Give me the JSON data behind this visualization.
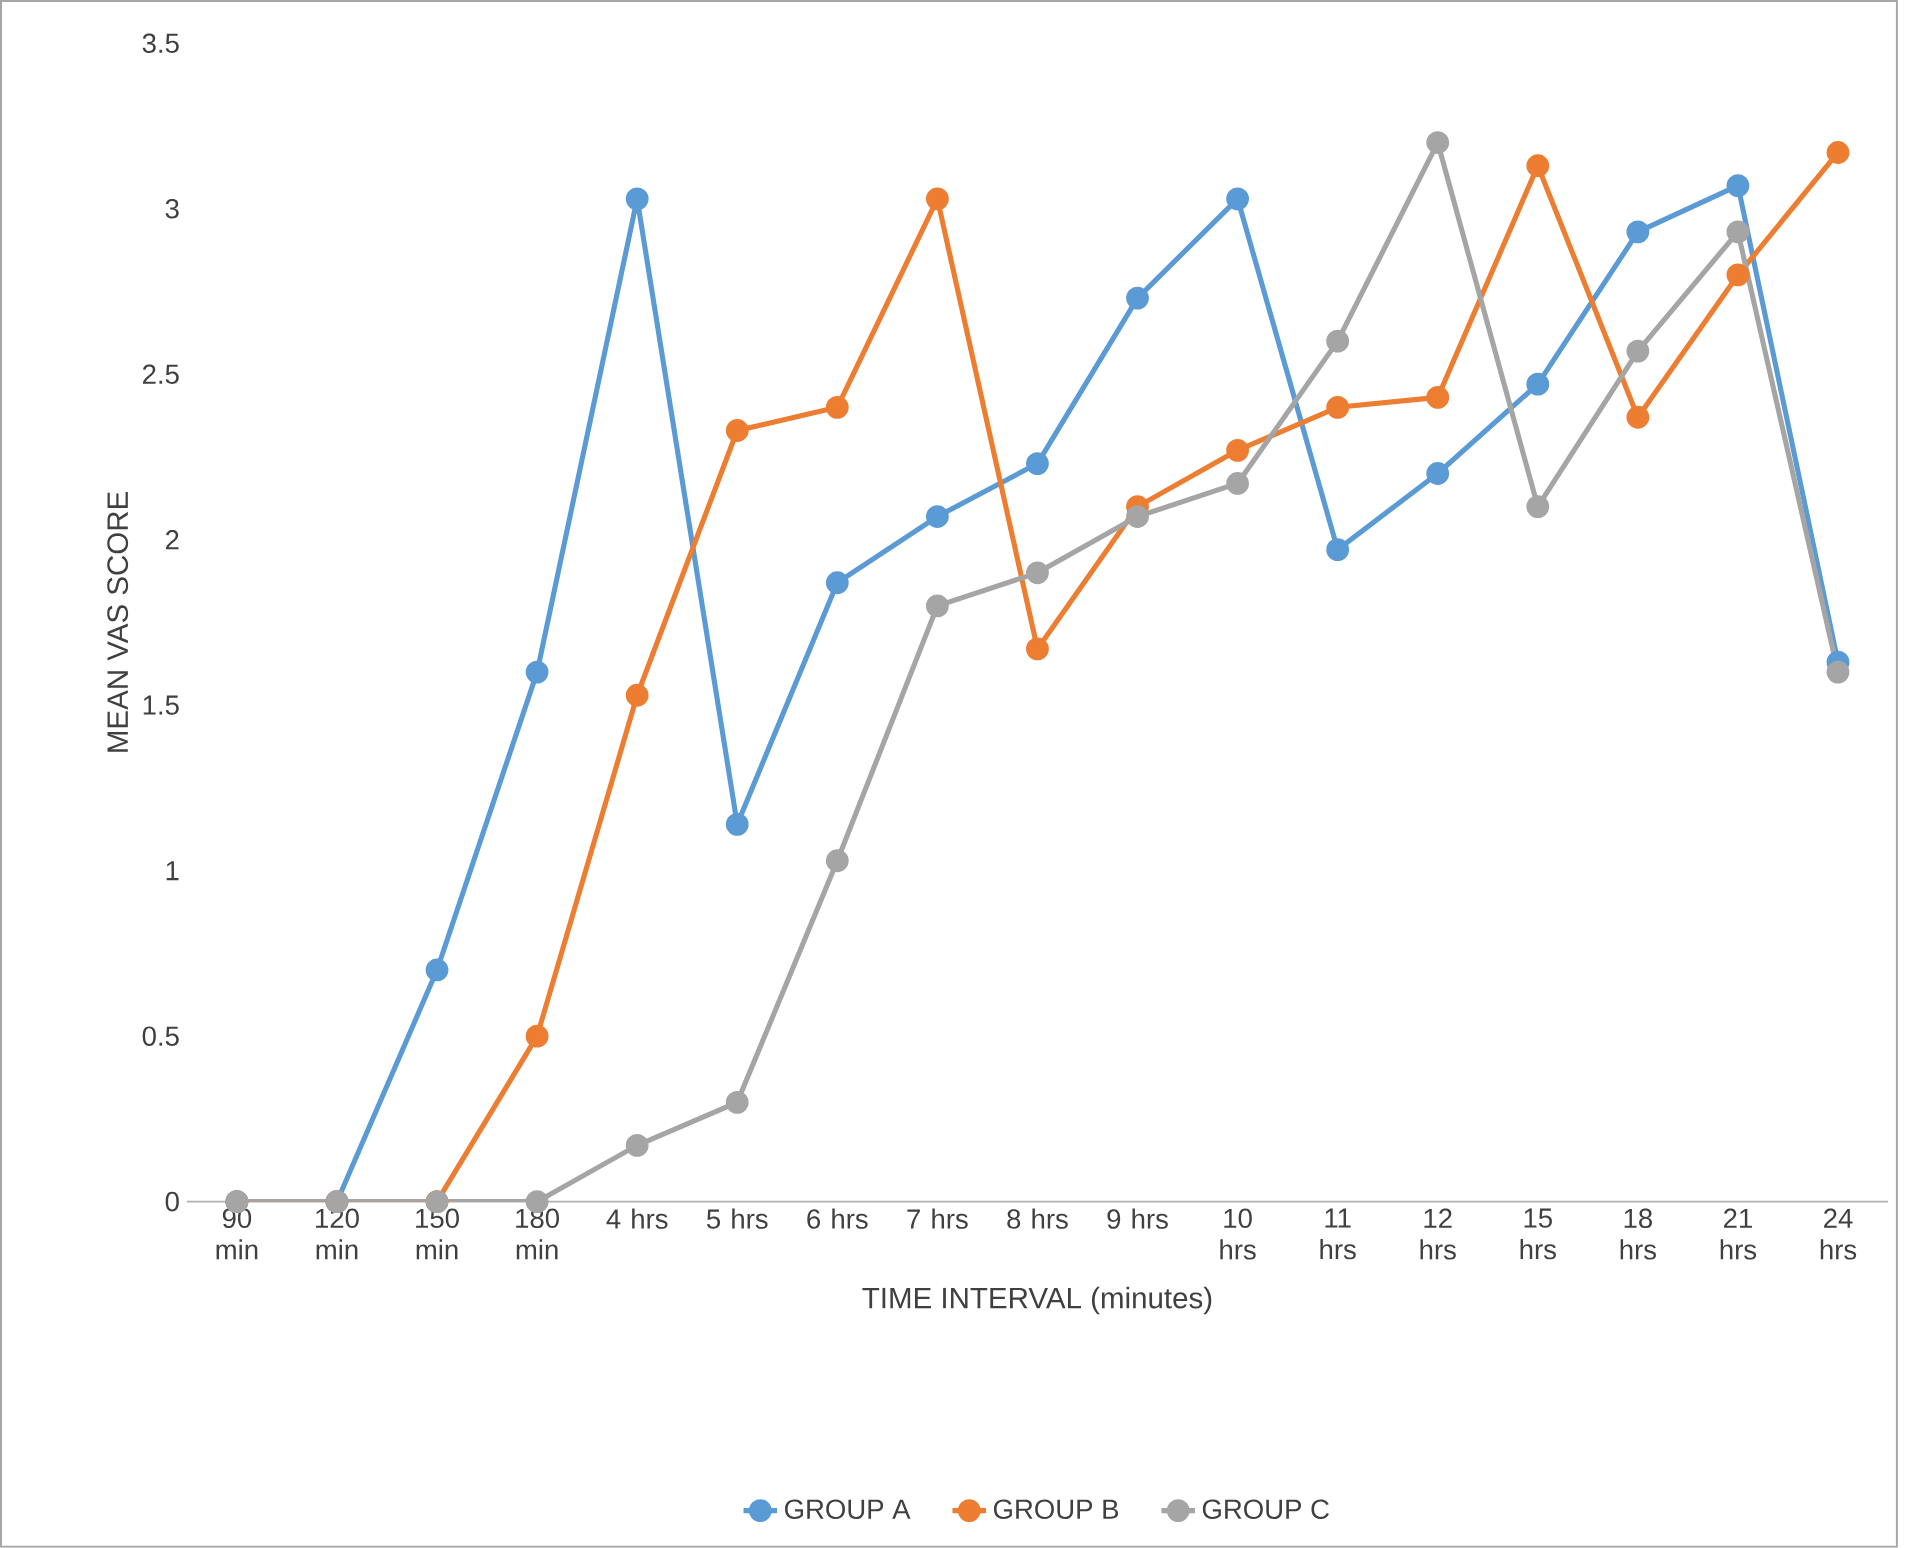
{
  "chart_data": {
    "type": "line",
    "xlabel": "TIME INTERVAL (minutes)",
    "ylabel": "MEAN VAS SCORE",
    "categories": [
      "90 min",
      "120 min",
      "150 min",
      "180 min",
      "4 hrs",
      "5 hrs",
      "6 hrs",
      "7 hrs",
      "8 hrs",
      "9 hrs",
      "10 hrs",
      "11 hrs",
      "12 hrs",
      "15 hrs",
      "18 hrs",
      "21 hrs",
      "24 hrs"
    ],
    "series": [
      {
        "name": "GROUP A",
        "color": "#5b9bd5",
        "values": [
          0,
          0,
          0.7,
          1.6,
          3.03,
          1.14,
          1.87,
          2.07,
          2.23,
          2.73,
          3.03,
          1.97,
          2.2,
          2.47,
          2.93,
          3.07,
          1.63
        ]
      },
      {
        "name": "GROUP B",
        "color": "#ed7d31",
        "values": [
          0,
          0,
          0,
          0.5,
          1.53,
          2.33,
          2.4,
          3.03,
          1.67,
          2.1,
          2.27,
          2.4,
          2.43,
          3.13,
          2.37,
          2.8,
          3.17
        ]
      },
      {
        "name": "GROUP C",
        "color": "#a5a5a5",
        "values": [
          0,
          0,
          0,
          0,
          0.17,
          0.3,
          1.03,
          1.8,
          1.9,
          2.07,
          2.17,
          2.6,
          3.2,
          2.1,
          2.57,
          2.93,
          1.6
        ]
      }
    ],
    "ylim": [
      0,
      3.5
    ],
    "yticks": [
      0,
      0.5,
      1,
      1.5,
      2,
      2.5,
      3,
      3.5
    ],
    "grid": false,
    "legend": "bottom",
    "marker": "circle",
    "line_style": "solid"
  }
}
